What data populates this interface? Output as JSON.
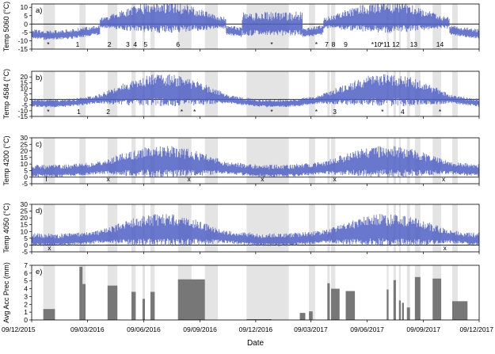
{
  "chart_data": {
    "type": "multi-panel",
    "x_axis": {
      "label": "Date",
      "range": [
        "2015-12-09",
        "2017-12-09"
      ],
      "ticks": [
        "09/12/2015",
        "09/03/2016",
        "09/06/2016",
        "09/09/2016",
        "09/12/2016",
        "09/03/2017",
        "09/06/2017",
        "09/09/2017",
        "09/12/2017"
      ]
    },
    "shaded_periods": [
      [
        "2015-12-28",
        "2016-01-16"
      ],
      [
        "2016-02-25",
        "2016-03-06"
      ],
      [
        "2016-04-11",
        "2016-04-27"
      ],
      [
        "2016-05-20",
        "2016-05-27"
      ],
      [
        "2016-06-07",
        "2016-06-11"
      ],
      [
        "2016-06-20",
        "2016-06-27"
      ],
      [
        "2016-08-04",
        "2016-08-26"
      ],
      [
        "2016-09-17",
        "2016-10-08"
      ],
      [
        "2016-11-24",
        "2017-02-01"
      ],
      [
        "2017-03-06",
        "2017-03-16"
      ],
      [
        "2017-04-05",
        "2017-04-09"
      ],
      [
        "2017-04-11",
        "2017-04-18"
      ],
      [
        "2017-07-11",
        "2017-07-14"
      ],
      [
        "2017-07-22",
        "2017-07-26"
      ],
      [
        "2017-07-31",
        "2017-08-03"
      ],
      [
        "2017-08-13",
        "2017-08-18"
      ],
      [
        "2017-08-26",
        "2017-09-04"
      ],
      [
        "2017-09-24",
        "2017-10-08"
      ],
      [
        "2017-10-26",
        "2017-11-04"
      ]
    ],
    "panels": [
      {
        "label": "a)",
        "ylabel": "Temp 5060 (°C)",
        "ylim": [
          -15,
          12
        ],
        "yticks": [
          -15,
          -10,
          -5,
          0,
          5,
          10
        ],
        "annotations": [
          {
            "text": "*",
            "x": "2016-01-05"
          },
          {
            "text": "1",
            "x": "2016-02-22"
          },
          {
            "text": "2",
            "x": "2016-04-14"
          },
          {
            "text": "3",
            "x": "2016-05-14"
          },
          {
            "text": "4",
            "x": "2016-05-26"
          },
          {
            "text": "5",
            "x": "2016-06-12"
          },
          {
            "text": "6",
            "x": "2016-08-04"
          },
          {
            "text": "*",
            "x": "2017-01-04"
          },
          {
            "text": "*",
            "x": "2017-03-18"
          },
          {
            "text": "7",
            "x": "2017-04-04"
          },
          {
            "text": "8",
            "x": "2017-04-15"
          },
          {
            "text": "9",
            "x": "2017-05-05"
          },
          {
            "text": "*10",
            "x": "2017-06-24"
          },
          {
            "text": "*11",
            "x": "2017-07-09"
          },
          {
            "text": "12",
            "x": "2017-07-26"
          },
          {
            "text": "13",
            "x": "2017-08-24"
          },
          {
            "text": "14",
            "x": "2017-10-06"
          }
        ]
      },
      {
        "label": "b)",
        "ylabel": "Temp 4584 (°C)",
        "ylim": [
          -15,
          25
        ],
        "yticks": [
          -15,
          -10,
          -5,
          0,
          5,
          10,
          15,
          20
        ],
        "annotations": [
          {
            "text": "*",
            "x": "2016-01-05"
          },
          {
            "text": "1",
            "x": "2016-02-24"
          },
          {
            "text": "2",
            "x": "2016-04-12"
          },
          {
            "text": "*",
            "x": "2016-08-10"
          },
          {
            "text": "*",
            "x": "2016-08-31"
          },
          {
            "text": "*",
            "x": "2017-01-04"
          },
          {
            "text": "*",
            "x": "2017-03-18"
          },
          {
            "text": "3",
            "x": "2017-04-17"
          },
          {
            "text": "*",
            "x": "2017-07-04"
          },
          {
            "text": "4",
            "x": "2017-08-06"
          },
          {
            "text": "*",
            "x": "2017-10-06"
          }
        ]
      },
      {
        "label": "c)",
        "ylabel": "Temp 4200 (°C)",
        "ylim": [
          -5,
          30
        ],
        "yticks": [
          -5,
          0,
          5,
          10,
          15,
          20,
          25,
          30
        ],
        "annotations": [
          {
            "text": "l",
            "x": "2016-01-02"
          },
          {
            "text": "x",
            "x": "2016-04-12"
          },
          {
            "text": "x",
            "x": "2016-08-22"
          },
          {
            "text": "x",
            "x": "2016-12-20"
          },
          {
            "text": "x",
            "x": "2017-04-17"
          },
          {
            "text": "x",
            "x": "2017-10-12"
          }
        ]
      },
      {
        "label": "d)",
        "ylabel": "Temp 4050 (°C)",
        "ylim": [
          -5,
          30
        ],
        "yticks": [
          -5,
          0,
          5,
          10,
          15,
          20,
          25,
          30
        ],
        "annotations": [
          {
            "text": "x",
            "x": "2016-01-07"
          },
          {
            "text": "x",
            "x": "2017-10-14"
          }
        ]
      },
      {
        "label": "e)",
        "ylabel": "Avg Acc Prec (mm)",
        "ylim": [
          0,
          7
        ],
        "yticks": [
          0,
          1,
          2,
          3,
          4,
          5,
          6,
          7
        ],
        "type": "bar",
        "bars": [
          {
            "start": "2015-12-28",
            "end": "2016-01-16",
            "value": 1.4
          },
          {
            "start": "2016-02-25",
            "end": "2016-03-01",
            "value": 6.8
          },
          {
            "start": "2016-03-01",
            "end": "2016-03-06",
            "value": 4.6
          },
          {
            "start": "2016-04-11",
            "end": "2016-04-27",
            "value": 4.4
          },
          {
            "start": "2016-05-20",
            "end": "2016-05-27",
            "value": 3.6
          },
          {
            "start": "2016-06-07",
            "end": "2016-06-11",
            "value": 2.7
          },
          {
            "start": "2016-06-20",
            "end": "2016-06-27",
            "value": 3.6
          },
          {
            "start": "2016-08-04",
            "end": "2016-09-17",
            "value": 5.2
          },
          {
            "start": "2016-11-24",
            "end": "2017-01-04",
            "value": 0.1
          },
          {
            "start": "2017-02-19",
            "end": "2017-02-28",
            "value": 0.9
          },
          {
            "start": "2017-03-06",
            "end": "2017-03-12",
            "value": 1.1
          },
          {
            "start": "2017-04-05",
            "end": "2017-04-09",
            "value": 4.7
          },
          {
            "start": "2017-04-11",
            "end": "2017-04-25",
            "value": 4.0
          },
          {
            "start": "2017-05-05",
            "end": "2017-05-20",
            "value": 3.7
          },
          {
            "start": "2017-07-11",
            "end": "2017-07-14",
            "value": 3.9
          },
          {
            "start": "2017-07-22",
            "end": "2017-07-26",
            "value": 5.1
          },
          {
            "start": "2017-07-31",
            "end": "2017-08-03",
            "value": 2.5
          },
          {
            "start": "2017-08-05",
            "end": "2017-08-08",
            "value": 2.2
          },
          {
            "start": "2017-08-13",
            "end": "2017-08-18",
            "value": 1.6
          },
          {
            "start": "2017-08-26",
            "end": "2017-09-04",
            "value": 5.5
          },
          {
            "start": "2017-09-24",
            "end": "2017-10-08",
            "value": 5.3
          },
          {
            "start": "2017-10-26",
            "end": "2017-11-20",
            "value": 2.4
          }
        ]
      }
    ],
    "series_color": "#4f5fc4",
    "shade_color": "#e4e4e4",
    "bar_color": "#777777"
  }
}
